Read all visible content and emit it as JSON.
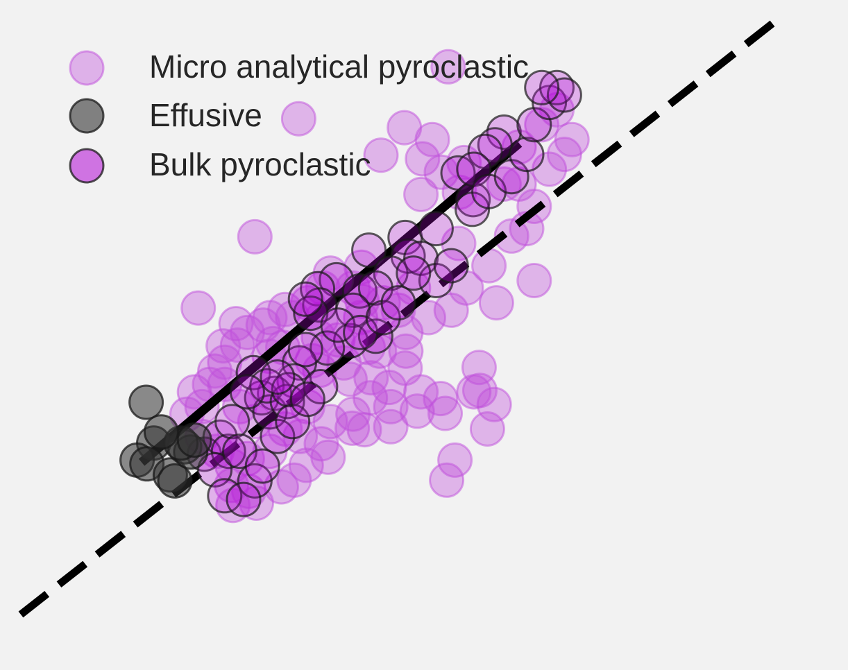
{
  "chart_data": {
    "type": "scatter",
    "title": "",
    "xlabel": "",
    "ylabel": "",
    "xlim": [
      0,
      100
    ],
    "ylim": [
      0,
      80
    ],
    "grid": false,
    "legend_position": "top-left",
    "colors": {
      "background": "#f2f2f2",
      "micro_fill": "#c04fdb",
      "bulk_fill": "#b30bd6",
      "effusive_fill": "#333333",
      "marker_edge_dark": "#1a1a1a",
      "regression_line": "#000000"
    },
    "series": [
      {
        "name": "Micro analytical pyroclastic",
        "marker": "circle",
        "points": [
          [
            56.6,
            73.8
          ],
          [
            36.8,
            66.8
          ],
          [
            50.8,
            65.6
          ],
          [
            54.5,
            64.0
          ],
          [
            47.7,
            61.9
          ],
          [
            53.2,
            61.4
          ],
          [
            58.7,
            60.9
          ],
          [
            55.7,
            59.6
          ],
          [
            53.0,
            56.6
          ],
          [
            58.1,
            56.9
          ],
          [
            31.0,
            50.9
          ],
          [
            45.1,
            46.8
          ],
          [
            45.2,
            42.2
          ],
          [
            23.5,
            41.3
          ],
          [
            35.0,
            41.1
          ],
          [
            39.8,
            39.8
          ],
          [
            39.4,
            37.4
          ],
          [
            28.5,
            39.2
          ],
          [
            32.1,
            39.0
          ],
          [
            28.7,
            36.3
          ],
          [
            26.8,
            36.2
          ],
          [
            33.4,
            36.5
          ],
          [
            25.7,
            32.8
          ],
          [
            34.7,
            36.0
          ],
          [
            32.9,
            34.8
          ],
          [
            38.6,
            34.2
          ],
          [
            39.6,
            32.9
          ],
          [
            42.8,
            33.9
          ],
          [
            51.0,
            35.5
          ],
          [
            47.5,
            35.5
          ],
          [
            50.9,
            33.2
          ],
          [
            43.6,
            31.7
          ],
          [
            46.4,
            31.9
          ],
          [
            48.8,
            30.6
          ],
          [
            46.3,
            29.2
          ],
          [
            60.7,
            33.3
          ],
          [
            60.8,
            30.2
          ],
          [
            55.6,
            29.1
          ],
          [
            52.5,
            27.4
          ],
          [
            56.2,
            27.1
          ],
          [
            49.0,
            25.3
          ],
          [
            39.8,
            23.0
          ],
          [
            40.7,
            21.2
          ],
          [
            43.9,
            25.1
          ],
          [
            45.5,
            24.9
          ],
          [
            34.5,
            17.2
          ],
          [
            36.2,
            18.1
          ],
          [
            37.8,
            20.1
          ],
          [
            30.2,
            16.6
          ],
          [
            31.2,
            15.0
          ],
          [
            27.9,
            17.4
          ],
          [
            28.1,
            14.7
          ],
          [
            57.5,
            20.8
          ],
          [
            56.4,
            18.1
          ],
          [
            62.7,
            28.3
          ],
          [
            61.8,
            25.0
          ],
          [
            60.0,
            30.0
          ],
          [
            58.0,
            50.0
          ],
          [
            62.0,
            47.0
          ],
          [
            65.0,
            51.0
          ],
          [
            68.0,
            45.0
          ],
          [
            63.0,
            42.0
          ],
          [
            59.0,
            44.0
          ],
          [
            57.0,
            41.0
          ],
          [
            54.0,
            40.0
          ],
          [
            51.0,
            38.0
          ],
          [
            48.0,
            42.0
          ],
          [
            44.0,
            44.0
          ],
          [
            41.0,
            46.0
          ],
          [
            40.0,
            44.0
          ],
          [
            38.0,
            42.0
          ],
          [
            36.0,
            40.0
          ],
          [
            33.0,
            40.0
          ],
          [
            30.0,
            38.0
          ],
          [
            27.0,
            34.0
          ],
          [
            25.0,
            31.0
          ],
          [
            24.0,
            28.0
          ],
          [
            29.0,
            28.0
          ],
          [
            31.0,
            26.0
          ],
          [
            35.0,
            25.0
          ],
          [
            37.0,
            24.0
          ],
          [
            33.0,
            22.0
          ],
          [
            30.0,
            21.0
          ],
          [
            28.0,
            20.0
          ],
          [
            26.0,
            22.0
          ],
          [
            24.0,
            24.0
          ],
          [
            22.0,
            27.0
          ],
          [
            23.0,
            30.0
          ],
          [
            27.0,
            31.0
          ],
          [
            66.0,
            58.0
          ],
          [
            68.0,
            55.0
          ],
          [
            70.0,
            60.0
          ],
          [
            72.0,
            62.0
          ],
          [
            69.0,
            66.0
          ],
          [
            71.0,
            68.0
          ],
          [
            73.0,
            64.0
          ],
          [
            66.0,
            63.0
          ],
          [
            64.0,
            58.0
          ],
          [
            67.0,
            52.0
          ],
          [
            52.0,
            44.0
          ],
          [
            50.0,
            41.0
          ],
          [
            45.0,
            40.0
          ],
          [
            42.0,
            37.0
          ],
          [
            46.0,
            36.0
          ],
          [
            49.0,
            28.0
          ],
          [
            53.0,
            30.0
          ],
          [
            44.0,
            27.0
          ],
          [
            41.0,
            26.0
          ],
          [
            38.0,
            28.0
          ]
        ]
      },
      {
        "name": "Effusive",
        "marker": "circle",
        "points": [
          [
            16.6,
            28.6
          ],
          [
            17.6,
            23.1
          ],
          [
            15.4,
            20.8
          ],
          [
            16.7,
            20.3
          ],
          [
            19.8,
            18.8
          ],
          [
            20.4,
            18.0
          ],
          [
            21.7,
            22.6
          ],
          [
            22.5,
            21.9
          ],
          [
            21.2,
            23.1
          ],
          [
            18.6,
            24.6
          ],
          [
            23.0,
            23.5
          ]
        ]
      },
      {
        "name": "Bulk pyroclastic",
        "marker": "circle",
        "points": [
          [
            64.0,
            65.0
          ],
          [
            62.8,
            63.3
          ],
          [
            57.9,
            59.5
          ],
          [
            61.5,
            62.4
          ],
          [
            59.9,
            55.9
          ],
          [
            59.8,
            54.6
          ],
          [
            50.9,
            50.8
          ],
          [
            46.1,
            49.1
          ],
          [
            51.3,
            48.3
          ],
          [
            41.8,
            45.1
          ],
          [
            39.3,
            43.9
          ],
          [
            39.6,
            41.7
          ],
          [
            38.4,
            40.6
          ],
          [
            37.7,
            42.5
          ],
          [
            44.9,
            43.6
          ],
          [
            43.7,
            36.9
          ],
          [
            47.0,
            37.5
          ],
          [
            40.6,
            35.9
          ],
          [
            36.9,
            33.9
          ],
          [
            36.2,
            31.5
          ],
          [
            33.6,
            29.8
          ],
          [
            31.9,
            29.2
          ],
          [
            30.8,
            32.6
          ],
          [
            33.0,
            27.3
          ],
          [
            32.6,
            30.8
          ],
          [
            35.3,
            28.7
          ],
          [
            35.5,
            30.3
          ],
          [
            37.7,
            35.7
          ],
          [
            39.7,
            30.7
          ],
          [
            24.3,
            21.6
          ],
          [
            26.4,
            23.9
          ],
          [
            27.5,
            22.0
          ],
          [
            25.7,
            19.5
          ],
          [
            60.0,
            60.0
          ],
          [
            55.0,
            52.0
          ],
          [
            53.0,
            48.0
          ],
          [
            49.0,
            46.0
          ],
          [
            47.0,
            44.0
          ],
          [
            44.0,
            41.0
          ],
          [
            42.0,
            39.0
          ],
          [
            45.0,
            38.0
          ],
          [
            48.0,
            40.0
          ],
          [
            50.0,
            42.0
          ],
          [
            55.0,
            45.0
          ],
          [
            57.0,
            47.0
          ],
          [
            52.0,
            46.0
          ],
          [
            62.0,
            57.0
          ],
          [
            65.0,
            59.0
          ],
          [
            67.0,
            62.0
          ],
          [
            68.0,
            66.0
          ],
          [
            70.0,
            69.0
          ],
          [
            71.0,
            71.0
          ],
          [
            72.0,
            70.0
          ],
          [
            69.0,
            71.0
          ],
          [
            34.0,
            32.0
          ],
          [
            30.0,
            30.0
          ],
          [
            28.0,
            26.0
          ],
          [
            29.0,
            22.0
          ],
          [
            31.0,
            18.0
          ],
          [
            27.0,
            16.0
          ],
          [
            29.5,
            15.5
          ],
          [
            32.0,
            20.0
          ],
          [
            34.0,
            24.0
          ],
          [
            36.0,
            26.0
          ],
          [
            38.0,
            29.0
          ]
        ]
      }
    ],
    "lines": [
      {
        "name": "",
        "style": "dashed",
        "x": [
          0,
          100
        ],
        "y": [
          0,
          80
        ]
      },
      {
        "name": "",
        "style": "solid",
        "x": [
          16,
          66
        ],
        "y": [
          20.5,
          63.5
        ]
      }
    ]
  },
  "legend": {
    "items": [
      {
        "label": "Micro analytical pyroclastic"
      },
      {
        "label": "Effusive"
      },
      {
        "label": "Bulk pyroclastic"
      }
    ]
  }
}
